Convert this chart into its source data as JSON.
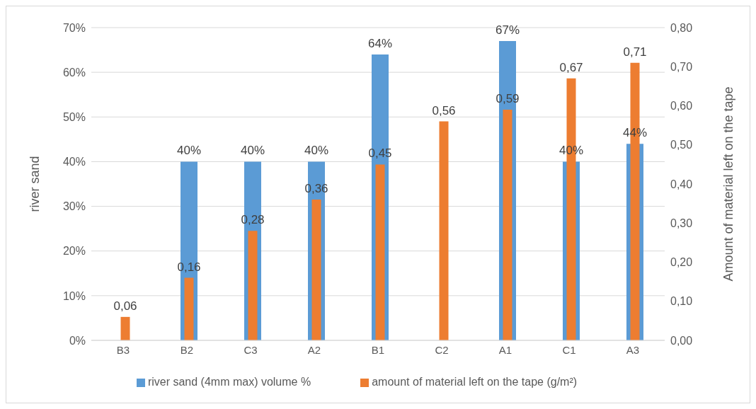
{
  "chart_data": {
    "type": "bar",
    "ylabel": "river sand",
    "y2label": "Amount of material left on the tape",
    "categories": [
      "B3",
      "B2",
      "C3",
      "A2",
      "B1",
      "C2",
      "A1",
      "C1",
      "A3"
    ],
    "series": [
      {
        "name": "river sand (4mm max) volume %",
        "color": "#5b9bd5",
        "values": [
          null,
          40,
          40,
          40,
          64,
          null,
          67,
          40,
          44
        ],
        "value_labels": [
          null,
          "40%",
          "40%",
          "40%",
          "64%",
          null,
          "67%",
          "40%",
          "44%"
        ]
      },
      {
        "name": "amount of material left on the tape (g/m²)",
        "color": "#ed7d31",
        "axis": "y2",
        "values": [
          0.06,
          0.16,
          0.28,
          0.36,
          0.45,
          0.56,
          0.59,
          0.67,
          0.71
        ],
        "value_labels": [
          "0,06",
          "0,16",
          "0,28",
          "0,36",
          "0,45",
          "0,56",
          "0,59",
          "0,67",
          "0,71"
        ]
      }
    ],
    "ylim": [
      0,
      70
    ],
    "yticks": [
      {
        "value": 0,
        "label": "0%"
      },
      {
        "value": 10,
        "label": "10%"
      },
      {
        "value": 20,
        "label": "20%"
      },
      {
        "value": 30,
        "label": "30%"
      },
      {
        "value": 40,
        "label": "40%"
      },
      {
        "value": 50,
        "label": "50%"
      },
      {
        "value": 60,
        "label": "60%"
      },
      {
        "value": 70,
        "label": "70%"
      }
    ],
    "y2lim": [
      0,
      0.8
    ],
    "y2ticks": [
      {
        "value": 0,
        "label": "0,00"
      },
      {
        "value": 0.1,
        "label": "0,10"
      },
      {
        "value": 0.2,
        "label": "0,20"
      },
      {
        "value": 0.3,
        "label": "0,30"
      },
      {
        "value": 0.4,
        "label": "0,40"
      },
      {
        "value": 0.5,
        "label": "0,50"
      },
      {
        "value": 0.6,
        "label": "0,60"
      },
      {
        "value": 0.7,
        "label": "0,70"
      },
      {
        "value": 0.8,
        "label": "0,80"
      }
    ],
    "grid": "y",
    "legend": "bottom"
  }
}
